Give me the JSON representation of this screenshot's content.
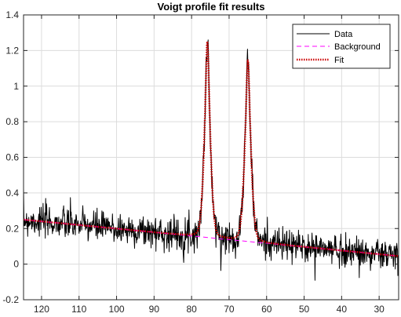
{
  "chart_data": {
    "type": "line",
    "title": "Voigt profile fit results",
    "xlabel": "",
    "ylabel": "",
    "x_reversed": true,
    "xlim": [
      124.8,
      24.8
    ],
    "ylim": [
      -0.2,
      1.4
    ],
    "xticks": [
      120,
      110,
      100,
      90,
      80,
      70,
      60,
      50,
      40,
      30
    ],
    "yticks": [
      -0.2,
      0,
      0.2,
      0.4,
      0.6,
      0.8,
      1,
      1.2,
      1.4
    ],
    "grid": true,
    "legend_position": "top-right",
    "background_model": {
      "x": [
        124.8,
        24.8
      ],
      "y": [
        0.25,
        0.045
      ]
    },
    "peaks": [
      {
        "center": 75.8,
        "height": 1.1,
        "gamma": 0.55,
        "sigma": 0.9
      },
      {
        "center": 65.0,
        "height": 1.02,
        "gamma": 0.55,
        "sigma": 0.95
      }
    ],
    "data_noise_amplitude": 0.045,
    "data_overshoot": [
      {
        "x": 75.8,
        "y": 1.25
      },
      {
        "x": 65.0,
        "y": 1.17
      }
    ],
    "series": [
      {
        "name": "Data",
        "color": "#000000",
        "style": "solid",
        "width": 1
      },
      {
        "name": "Background",
        "color": "#ff00ff",
        "style": "dashed",
        "width": 1
      },
      {
        "name": "Fit",
        "color": "#cc0000",
        "style": "dotted",
        "width": 2.5
      }
    ]
  }
}
